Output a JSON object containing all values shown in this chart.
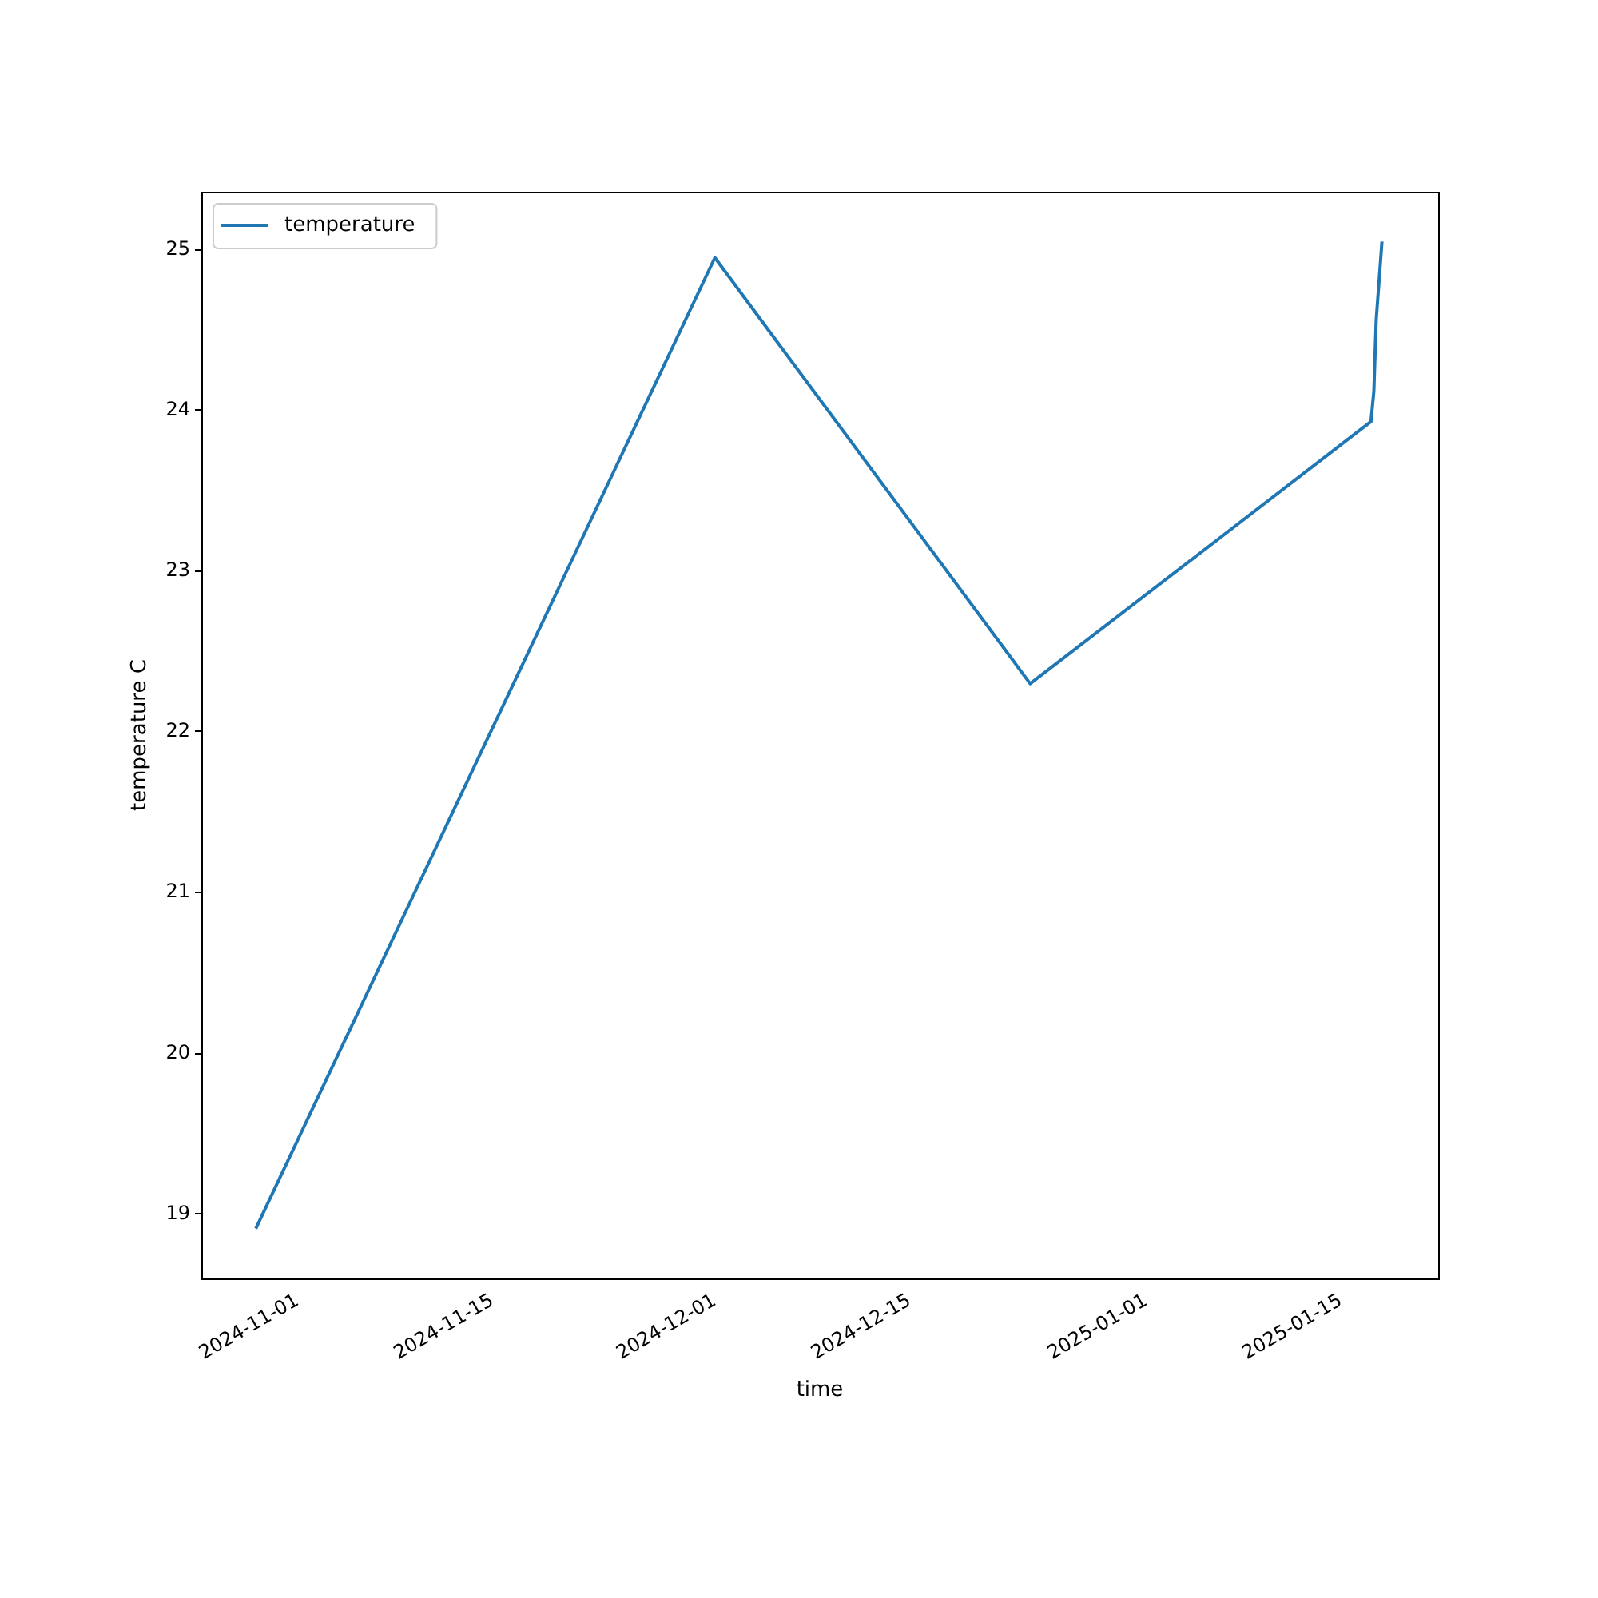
{
  "chart_data": {
    "type": "line",
    "xlabel": "time",
    "ylabel": "temperature C",
    "x": [
      "2024-10-29",
      "2024-12-01",
      "2024-12-23T16:00",
      "2025-01-17T04:00",
      "2025-01-17T09:00",
      "2025-01-17T13:00",
      "2025-01-17T23:00"
    ],
    "series": [
      {
        "name": "temperature",
        "color": "#1f77b4",
        "values": [
          18.91,
          24.95,
          22.3,
          23.93,
          24.12,
          24.56,
          25.05
        ]
      }
    ],
    "xlim": [
      "2024-10-25T02:00",
      "2025-01-22"
    ],
    "xticks": [
      "2024-11-01",
      "2024-11-15",
      "2024-12-01",
      "2024-12-15",
      "2025-01-01",
      "2025-01-15"
    ],
    "ylim": [
      18.6,
      25.36
    ],
    "yticks": [
      19,
      20,
      21,
      22,
      23,
      24,
      25
    ],
    "grid": false,
    "legend": "top left",
    "marker": "none",
    "line_style": "solid"
  }
}
